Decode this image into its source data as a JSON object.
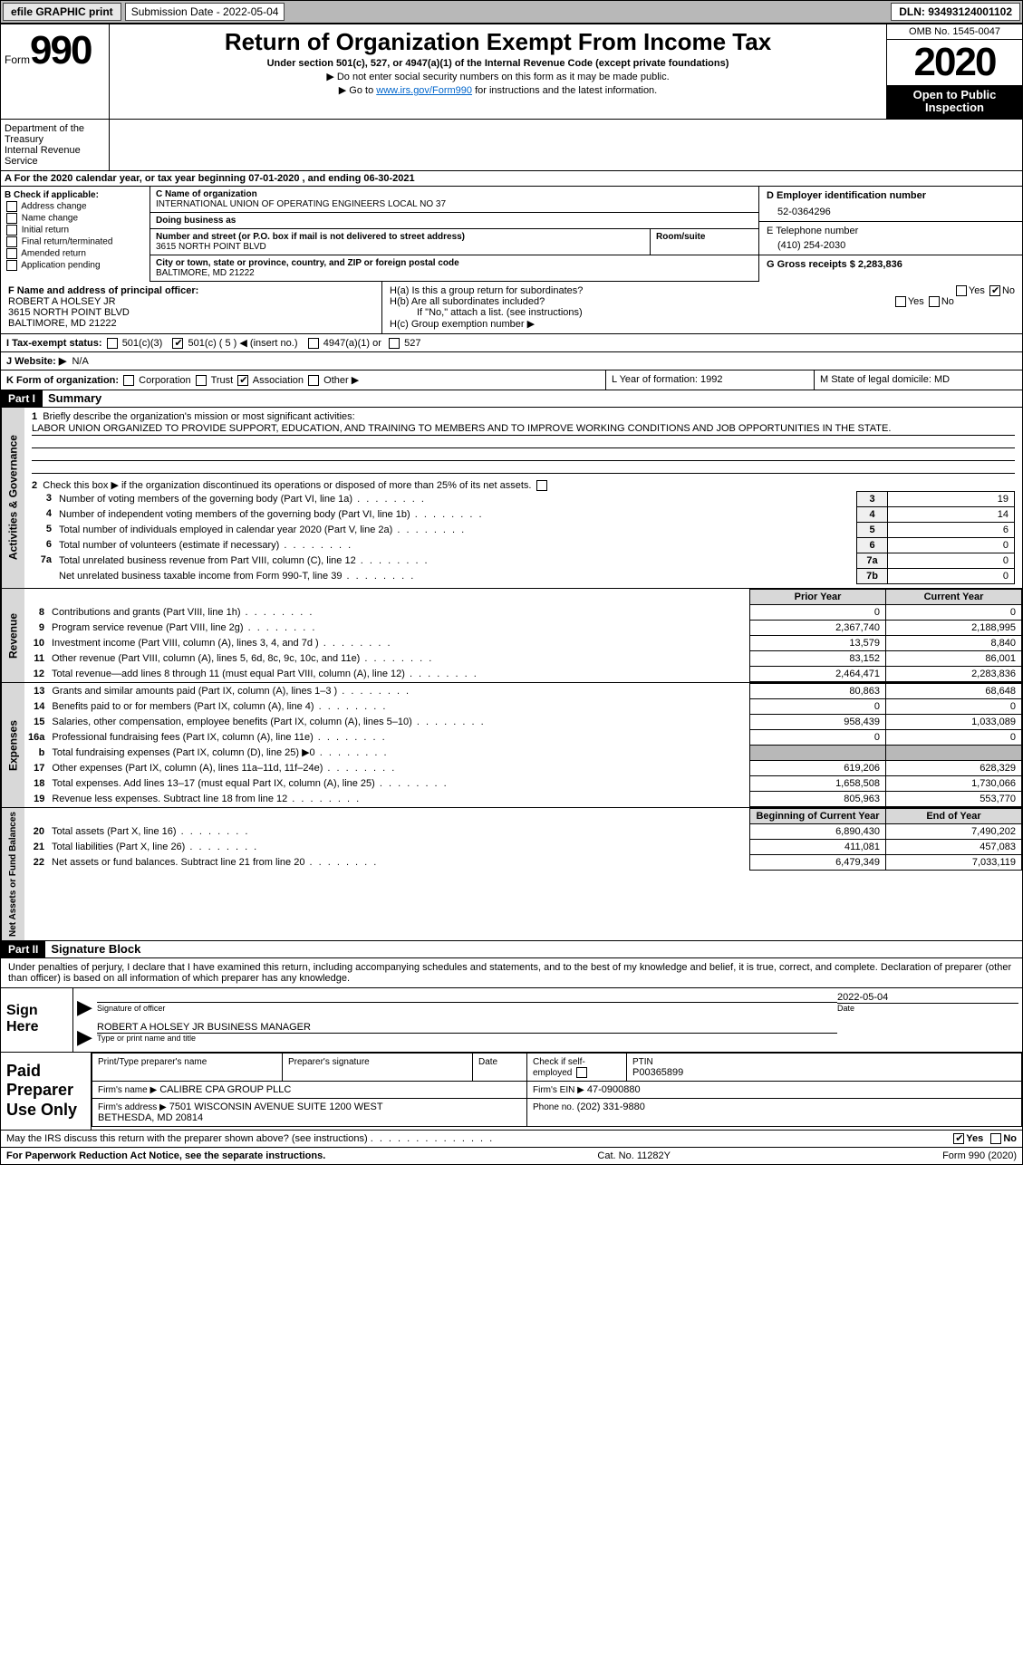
{
  "topbar": {
    "efile_label": "efile GRAPHIC print",
    "submission_label": "Submission Date - 2022-05-04",
    "dln_label": "DLN: 93493124001102"
  },
  "header": {
    "form_word": "Form",
    "form_number": "990",
    "title": "Return of Organization Exempt From Income Tax",
    "subtitle": "Under section 501(c), 527, or 4947(a)(1) of the Internal Revenue Code (except private foundations)",
    "note1": "▶ Do not enter social security numbers on this form as it may be made public.",
    "note2_pre": "▶ Go to ",
    "note2_link": "www.irs.gov/Form990",
    "note2_post": " for instructions and the latest information.",
    "omb": "OMB No. 1545-0047",
    "year": "2020",
    "otp": "Open to Public Inspection",
    "dept": "Department of the Treasury\nInternal Revenue Service"
  },
  "lineA": "For the 2020 calendar year, or tax year beginning 07-01-2020    , and ending 06-30-2021",
  "boxB": {
    "header": "B Check if applicable:",
    "items": [
      "Address change",
      "Name change",
      "Initial return",
      "Final return/terminated",
      "Amended return",
      "Application pending"
    ]
  },
  "entity": {
    "c_label": "C Name of organization",
    "name": "INTERNATIONAL UNION OF OPERATING ENGINEERS LOCAL NO 37",
    "dba_label": "Doing business as",
    "dba": "",
    "street_label": "Number and street (or P.O. box if mail is not delivered to street address)",
    "room_label": "Room/suite",
    "street": "3615 NORTH POINT BLVD",
    "city_label": "City or town, state or province, country, and ZIP or foreign postal code",
    "city": "BALTIMORE, MD  21222"
  },
  "right": {
    "d_label": "D Employer identification number",
    "ein": "52-0364296",
    "e_label": "E Telephone number",
    "phone": "(410) 254-2030",
    "g_label": "G Gross receipts $ 2,283,836"
  },
  "officer": {
    "f_label": "F  Name and address of principal officer:",
    "name": "ROBERT A HOLSEY JR",
    "addr1": "3615 NORTH POINT BLVD",
    "addr2": "BALTIMORE, MD  21222"
  },
  "groupH": {
    "ha": "H(a)  Is this a group return for subordinates?",
    "hb": "H(b)  Are all subordinates included?",
    "hb_note": "If \"No,\" attach a list. (see instructions)",
    "hc": "H(c)  Group exemption number ▶",
    "yes": "Yes",
    "no": "No"
  },
  "status": {
    "i_label": "I    Tax-exempt status:",
    "c3": "501(c)(3)",
    "c_pre": "501(c) ( 5 ) ◀ (insert no.)",
    "a4947": "4947(a)(1) or",
    "s527": "527"
  },
  "website": {
    "j_label": "J   Website: ▶",
    "val": "N/A"
  },
  "korg": {
    "k_label": "K Form of organization:",
    "corp": "Corporation",
    "trust": "Trust",
    "assoc": "Association",
    "other": "Other ▶",
    "l_label": "L Year of formation: 1992",
    "m_label": "M State of legal domicile: MD"
  },
  "parts": {
    "p1": "Part I",
    "p1_title": "Summary",
    "p2": "Part II",
    "p2_title": "Signature Block"
  },
  "vlabels": {
    "gov": "Activities & Governance",
    "rev": "Revenue",
    "exp": "Expenses",
    "net": "Net Assets or Fund Balances"
  },
  "summary": {
    "line1_label": "Briefly describe the organization's mission or most significant activities:",
    "mission": "LABOR UNION ORGANIZED TO PROVIDE SUPPORT, EDUCATION, AND TRAINING TO MEMBERS AND TO IMPROVE WORKING CONDITIONS AND JOB OPPORTUNITIES IN THE STATE.",
    "line2": "Check this box ▶       if the organization discontinued its operations or disposed of more than 25% of its net assets.",
    "rows": [
      {
        "n": "3",
        "d": "Number of voting members of the governing body (Part VI, line 1a)",
        "b": "3",
        "v": "19"
      },
      {
        "n": "4",
        "d": "Number of independent voting members of the governing body (Part VI, line 1b)",
        "b": "4",
        "v": "14"
      },
      {
        "n": "5",
        "d": "Total number of individuals employed in calendar year 2020 (Part V, line 2a)",
        "b": "5",
        "v": "6"
      },
      {
        "n": "6",
        "d": "Total number of volunteers (estimate if necessary)",
        "b": "6",
        "v": "0"
      },
      {
        "n": "7a",
        "d": "Total unrelated business revenue from Part VIII, column (C), line 12",
        "b": "7a",
        "v": "0"
      },
      {
        "n": "",
        "d": "Net unrelated business taxable income from Form 990-T, line 39",
        "b": "7b",
        "v": "0"
      }
    ]
  },
  "fin": {
    "h_prior": "Prior Year",
    "h_curr": "Current Year",
    "h_beg": "Beginning of Current Year",
    "h_end": "End of Year",
    "revenue": [
      {
        "n": "8",
        "d": "Contributions and grants (Part VIII, line 1h)",
        "p": "0",
        "c": "0"
      },
      {
        "n": "9",
        "d": "Program service revenue (Part VIII, line 2g)",
        "p": "2,367,740",
        "c": "2,188,995"
      },
      {
        "n": "10",
        "d": "Investment income (Part VIII, column (A), lines 3, 4, and 7d )",
        "p": "13,579",
        "c": "8,840"
      },
      {
        "n": "11",
        "d": "Other revenue (Part VIII, column (A), lines 5, 6d, 8c, 9c, 10c, and 11e)",
        "p": "83,152",
        "c": "86,001"
      },
      {
        "n": "12",
        "d": "Total revenue—add lines 8 through 11 (must equal Part VIII, column (A), line 12)",
        "p": "2,464,471",
        "c": "2,283,836"
      }
    ],
    "expenses": [
      {
        "n": "13",
        "d": "Grants and similar amounts paid (Part IX, column (A), lines 1–3 )",
        "p": "80,863",
        "c": "68,648"
      },
      {
        "n": "14",
        "d": "Benefits paid to or for members (Part IX, column (A), line 4)",
        "p": "0",
        "c": "0"
      },
      {
        "n": "15",
        "d": "Salaries, other compensation, employee benefits (Part IX, column (A), lines 5–10)",
        "p": "958,439",
        "c": "1,033,089"
      },
      {
        "n": "16a",
        "d": "Professional fundraising fees (Part IX, column (A), line 11e)",
        "p": "0",
        "c": "0"
      },
      {
        "n": "b",
        "d": "Total fundraising expenses (Part IX, column (D), line 25) ▶0",
        "p": "shade",
        "c": "shade"
      },
      {
        "n": "17",
        "d": "Other expenses (Part IX, column (A), lines 11a–11d, 11f–24e)",
        "p": "619,206",
        "c": "628,329"
      },
      {
        "n": "18",
        "d": "Total expenses. Add lines 13–17 (must equal Part IX, column (A), line 25)",
        "p": "1,658,508",
        "c": "1,730,066"
      },
      {
        "n": "19",
        "d": "Revenue less expenses. Subtract line 18 from line 12",
        "p": "805,963",
        "c": "553,770"
      }
    ],
    "net": [
      {
        "n": "20",
        "d": "Total assets (Part X, line 16)",
        "p": "6,890,430",
        "c": "7,490,202"
      },
      {
        "n": "21",
        "d": "Total liabilities (Part X, line 26)",
        "p": "411,081",
        "c": "457,083"
      },
      {
        "n": "22",
        "d": "Net assets or fund balances. Subtract line 21 from line 20",
        "p": "6,479,349",
        "c": "7,033,119"
      }
    ]
  },
  "sig": {
    "disclaimer": "Under penalties of perjury, I declare that I have examined this return, including accompanying schedules and statements, and to the best of my knowledge and belief, it is true, correct, and complete. Declaration of preparer (other than officer) is based on all information of which preparer has any knowledge.",
    "sign_here": "Sign Here",
    "sig_officer": "Signature of officer",
    "date_lbl": "Date",
    "date_val": "2022-05-04",
    "name_title": "ROBERT A HOLSEY JR  BUSINESS MANAGER",
    "type_lbl": "Type or print name and title"
  },
  "prep": {
    "heading": "Paid Preparer Use Only",
    "h_name": "Print/Type preparer's name",
    "h_sig": "Preparer's signature",
    "h_date": "Date",
    "h_check": "Check         if self-employed",
    "h_ptin": "PTIN",
    "ptin": "P00365899",
    "firm_name_lbl": "Firm's name    ▶",
    "firm_name": "CALIBRE CPA GROUP PLLC",
    "firm_ein_lbl": "Firm's EIN ▶",
    "firm_ein": "47-0900880",
    "firm_addr_lbl": "Firm's address ▶",
    "firm_addr": "7501 WISCONSIN AVENUE SUITE 1200 WEST\nBETHESDA, MD  20814",
    "phone_lbl": "Phone no.",
    "phone": "(202) 331-9880",
    "discuss": "May the IRS discuss this return with the preparer shown above? (see instructions)",
    "yes": "Yes",
    "no": "No"
  },
  "footer": {
    "pra": "For Paperwork Reduction Act Notice, see the separate instructions.",
    "cat": "Cat. No. 11282Y",
    "form": "Form 990 (2020)"
  }
}
